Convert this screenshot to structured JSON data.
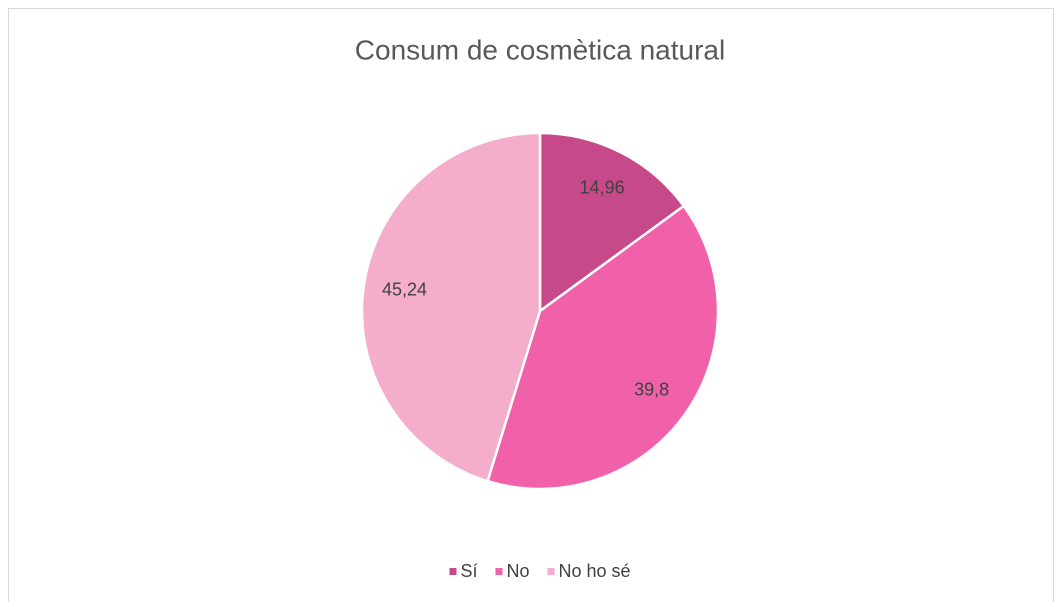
{
  "chart_data": {
    "type": "pie",
    "title": "Consum de cosmètica natural",
    "categories": [
      "Sí",
      "No",
      "No ho sé"
    ],
    "values": [
      14.96,
      39.8,
      45.24
    ],
    "value_labels": [
      "14,96",
      "39,8",
      "45,24"
    ],
    "colors": [
      "#c64a89",
      "#f061a9",
      "#f4aecb"
    ],
    "legend": "bottom"
  }
}
